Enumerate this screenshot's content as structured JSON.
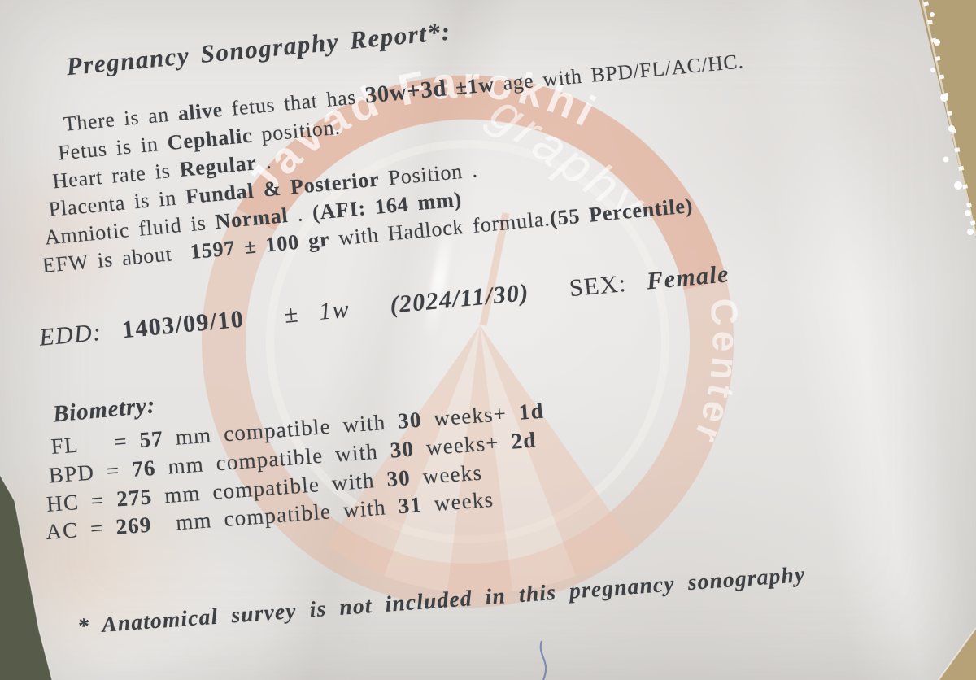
{
  "report": {
    "title": "Pregnancy Sonography Report*:",
    "lines": [
      [
        [
          "There is an ",
          ""
        ],
        [
          "alive",
          "b"
        ],
        [
          " fetus that has ",
          ""
        ],
        [
          "30w+3d",
          "b lg"
        ],
        [
          " ",
          ""
        ],
        [
          "±1w",
          "b"
        ],
        [
          " age with BPD/FL/AC/HC.",
          ""
        ]
      ],
      [
        [
          "Fetus is in ",
          ""
        ],
        [
          "Cephalic",
          "b"
        ],
        [
          " position.",
          ""
        ]
      ],
      [
        [
          "Heart rate is ",
          ""
        ],
        [
          "Regular",
          "b"
        ],
        [
          " .",
          ""
        ]
      ],
      [
        [
          "Placenta is in ",
          ""
        ],
        [
          "Fundal & Posterior",
          "b"
        ],
        [
          " Position .",
          ""
        ]
      ],
      [
        [
          "Amniotic fluid is ",
          ""
        ],
        [
          "Normal",
          "b"
        ],
        [
          " . ",
          ""
        ],
        [
          "(AFI: 164 mm)",
          "b"
        ]
      ],
      [
        [
          "EFW is about  ",
          ""
        ],
        [
          "1597 ± 100 gr",
          "b"
        ],
        [
          " with Hadlock formula.",
          ""
        ],
        [
          "(55 Percentile)",
          "b"
        ]
      ]
    ],
    "edd": [
      [
        [
          "EDD: ",
          "i"
        ],
        [
          "1403/09/10",
          "b"
        ],
        [
          "  ",
          ""
        ],
        [
          "± 1w",
          "i"
        ],
        [
          "  ",
          ""
        ],
        [
          "(2024/11/30)",
          "b i"
        ],
        [
          "  SEX: ",
          ""
        ],
        [
          "Female",
          "b i"
        ]
      ]
    ],
    "biometry_heading": "Biometry:",
    "biometry": [
      [
        [
          "FL   = ",
          ""
        ],
        [
          "57",
          "b"
        ],
        [
          " mm compatible with ",
          ""
        ],
        [
          "30",
          "b"
        ],
        [
          " weeks+ ",
          ""
        ],
        [
          "1d",
          "b"
        ]
      ],
      [
        [
          "BPD = ",
          ""
        ],
        [
          "76",
          "b"
        ],
        [
          " mm compatible with ",
          ""
        ],
        [
          "30",
          "b"
        ],
        [
          " weeks+ ",
          ""
        ],
        [
          "2d",
          "b"
        ]
      ],
      [
        [
          "HC = ",
          ""
        ],
        [
          "275",
          "b"
        ],
        [
          " mm compatible with ",
          ""
        ],
        [
          "30",
          "b"
        ],
        [
          " weeks",
          ""
        ]
      ],
      [
        [
          "AC = ",
          ""
        ],
        [
          "269",
          "b"
        ],
        [
          "  mm compatible with ",
          ""
        ],
        [
          "31",
          "b"
        ],
        [
          " weeks",
          ""
        ]
      ]
    ],
    "footnote": "* Anatomical survey is not included in this pregnancy sonography"
  },
  "watermark": {
    "arc_top": "Javad Farokhi",
    "arc_right": "Center",
    "inner_text": "graphy"
  },
  "colors": {
    "paper": "#e8e6e4",
    "ink": "#3d4145",
    "watermark_ring": "#e2a182",
    "watermark_fan": "#eac7b4",
    "desk_tan": "#b3a077",
    "desk_olive": "#565b4a",
    "pen_mark": "#5d6cae"
  }
}
